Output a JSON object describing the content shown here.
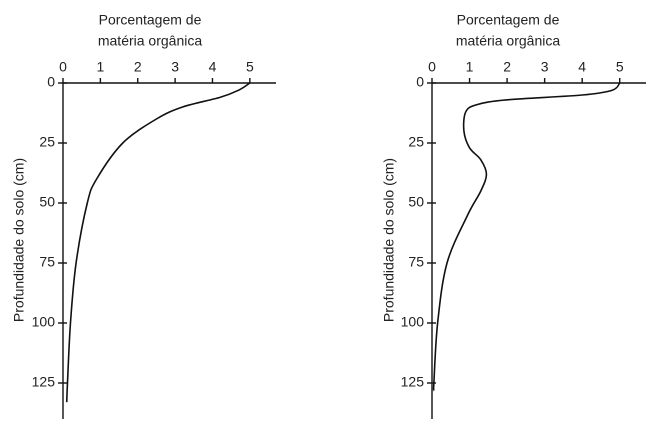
{
  "chart_data": [
    {
      "type": "line",
      "xlabel": [
        "Porcentagem de",
        "matéria orgânica"
      ],
      "ylabel": "Profundidade do solo (cm)",
      "xlim": [
        0,
        5.7
      ],
      "xticks": [
        0,
        1,
        2,
        3,
        4,
        5
      ],
      "ylim": [
        0,
        140
      ],
      "yticks": [
        0,
        25,
        50,
        75,
        100,
        125
      ],
      "x": [
        5,
        4.7,
        4.2,
        3.2,
        2.5,
        1.6,
        0.9,
        0.65,
        0.35,
        0.2,
        0.12,
        0.1
      ],
      "values": [
        0,
        3,
        6,
        10,
        15,
        25,
        40,
        50,
        75,
        100,
        125,
        133
      ],
      "color": "#111"
    },
    {
      "type": "line",
      "xlabel": [
        "Porcentagem de",
        "matéria orgânica"
      ],
      "ylabel": "Profundidade do solo (cm)",
      "xlim": [
        0,
        5.7
      ],
      "xticks": [
        0,
        1,
        2,
        3,
        4,
        5
      ],
      "ylim": [
        0,
        140
      ],
      "yticks": [
        0,
        25,
        50,
        75,
        100,
        125
      ],
      "x": [
        5,
        4.8,
        4,
        2,
        1.2,
        0.9,
        0.85,
        1,
        1.3,
        1.45,
        1.3,
        0.95,
        0.4,
        0.15,
        0.05,
        0.05
      ],
      "values": [
        0,
        3,
        5,
        7,
        9,
        12,
        20,
        27,
        32,
        38,
        45,
        55,
        75,
        100,
        125,
        128
      ],
      "color": "#111"
    }
  ]
}
